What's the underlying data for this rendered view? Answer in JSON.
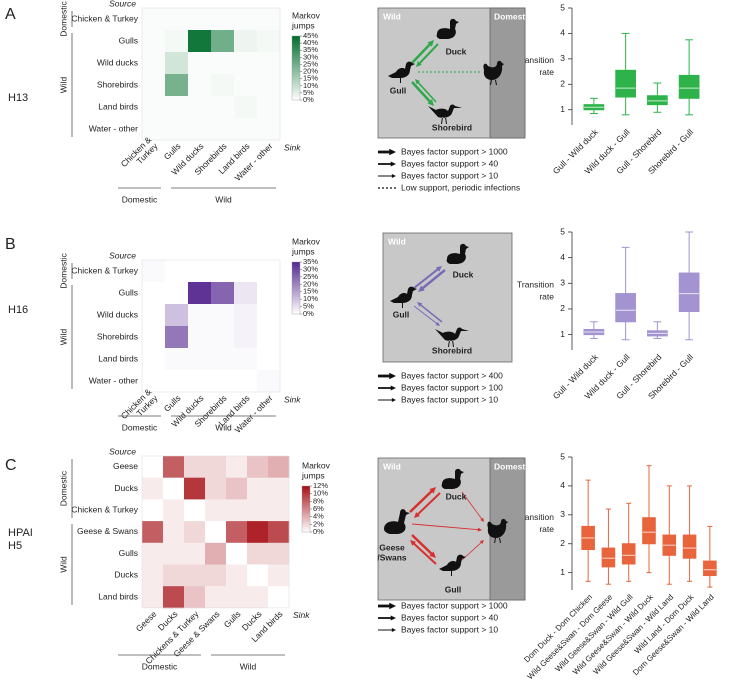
{
  "panels": [
    {
      "letter": "A",
      "name": [
        "H13"
      ]
    },
    {
      "letter": "B",
      "name": [
        "H16"
      ]
    },
    {
      "letter": "C",
      "name": [
        "HPAI",
        "H5"
      ]
    }
  ],
  "chart_data": [
    {
      "type": "heatmap",
      "source_label": "Source",
      "sink_label": "Sink",
      "rows": [
        "Chicken & Turkey",
        "Gulls",
        "Wild ducks",
        "Shorebirds",
        "Land birds",
        "Water - other"
      ],
      "columns": [
        [
          "Chicken &",
          "Turkey"
        ],
        [
          "Gulls"
        ],
        [
          "Wild ducks"
        ],
        [
          "Shorebirds"
        ],
        [
          "Land birds"
        ],
        [
          "Water - other"
        ]
      ],
      "row_groups": [
        {
          "name": "Domestic",
          "count": 1
        },
        {
          "name": "Wild",
          "count": 5
        }
      ],
      "column_groups": [
        {
          "name": "Domestic",
          "count": 1
        },
        {
          "name": "Wild",
          "count": 5
        }
      ],
      "values": [
        [
          1,
          1,
          1,
          1,
          1,
          1
        ],
        [
          1,
          2,
          42,
          25,
          3,
          2
        ],
        [
          1,
          8,
          1,
          1,
          1,
          1
        ],
        [
          1,
          24,
          1,
          2,
          1,
          1
        ],
        [
          1,
          1,
          1,
          1,
          2,
          1
        ],
        [
          1,
          1,
          1,
          1,
          1,
          1
        ]
      ],
      "colorbar_title": [
        "Markov",
        "jumps"
      ],
      "colorbar_lim": [
        0,
        45
      ],
      "colorbar_ticks": [
        {
          "value": 0,
          "label": "0%"
        },
        {
          "value": 5,
          "label": "5%"
        },
        {
          "value": 10,
          "label": "10%"
        },
        {
          "value": 15,
          "label": "15%"
        },
        {
          "value": 20,
          "label": "20%"
        },
        {
          "value": 25,
          "label": "25%"
        },
        {
          "value": 30,
          "label": "30%"
        },
        {
          "value": 35,
          "label": "35%"
        },
        {
          "value": 40,
          "label": "40%"
        },
        {
          "value": 45,
          "label": "45%"
        }
      ],
      "color": "#006d2c"
    },
    {
      "type": "box",
      "ylabel": [
        "Transition",
        "rate"
      ],
      "categories": [
        "Gull - Wild duck",
        "Wild duck - Gull",
        "Gull - Shorebird",
        "Shorebird - Gull"
      ],
      "values": [
        [
          0.85,
          1.0,
          1.1,
          1.2,
          1.45
        ],
        [
          0.8,
          1.5,
          1.85,
          2.55,
          4.0
        ],
        [
          0.9,
          1.2,
          1.35,
          1.55,
          2.05
        ],
        [
          0.8,
          1.45,
          1.85,
          2.35,
          3.75
        ]
      ],
      "color": "#2db34a",
      "ylim": [
        0.4,
        5
      ],
      "yticks": [
        1,
        2,
        3,
        4,
        5
      ]
    },
    {
      "type": "heatmap",
      "source_label": "Source",
      "sink_label": "Sink",
      "rows": [
        "Chicken & Turkey",
        "Gulls",
        "Wild ducks",
        "Shorebirds",
        "Land birds",
        "Water - other"
      ],
      "columns": [
        [
          "Chicken &",
          "Turkey"
        ],
        [
          "Gulls"
        ],
        [
          "Wild ducks"
        ],
        [
          "Shorebirds"
        ],
        [
          "Land birds"
        ],
        [
          "Water - other"
        ]
      ],
      "row_groups": [
        {
          "name": "Domestic",
          "count": 1
        },
        {
          "name": "Wild",
          "count": 5
        }
      ],
      "column_groups": [
        {
          "name": "Domestic",
          "count": 1
        },
        {
          "name": "Wild",
          "count": 5
        }
      ],
      "values": [
        [
          1,
          0,
          0,
          0,
          0,
          0
        ],
        [
          0,
          0,
          33,
          25,
          4,
          0
        ],
        [
          0,
          10,
          1,
          1,
          2,
          0
        ],
        [
          0,
          22,
          1,
          1,
          2,
          0
        ],
        [
          0,
          1,
          1,
          1,
          1,
          0
        ],
        [
          0,
          0,
          0,
          0,
          0,
          1
        ]
      ],
      "colorbar_title": [
        "Markov",
        "jumps"
      ],
      "colorbar_lim": [
        0,
        35
      ],
      "colorbar_ticks": [
        {
          "value": 0,
          "label": "0%"
        },
        {
          "value": 5,
          "label": "5%"
        },
        {
          "value": 10,
          "label": "10%"
        },
        {
          "value": 15,
          "label": "15%"
        },
        {
          "value": 20,
          "label": "20%"
        },
        {
          "value": 25,
          "label": "25%"
        },
        {
          "value": 30,
          "label": "30%"
        },
        {
          "value": 35,
          "label": "35%"
        }
      ],
      "color": "#54278f"
    },
    {
      "type": "box",
      "ylabel": [
        "Transition",
        "rate"
      ],
      "categories": [
        "Gull - Wild duck",
        "Wild duck - Gull",
        "Gull - Shorebird",
        "Shorebird - Gull"
      ],
      "values": [
        [
          0.85,
          1.0,
          1.1,
          1.2,
          1.5
        ],
        [
          0.8,
          1.5,
          1.95,
          2.6,
          4.4
        ],
        [
          0.85,
          0.95,
          1.05,
          1.15,
          1.5
        ],
        [
          0.8,
          1.9,
          2.6,
          3.4,
          5.0
        ]
      ],
      "color": "#a393d1",
      "ylim": [
        0.4,
        5
      ],
      "yticks": [
        1,
        2,
        3,
        4,
        5
      ]
    },
    {
      "type": "heatmap",
      "source_label": "Source",
      "sink_label": "Sink",
      "rows": [
        "Geese",
        "Ducks",
        "Chicken & Turkey",
        "Geese & Swans",
        "Gulls",
        "Ducks",
        "Land birds"
      ],
      "columns": [
        [
          "Geese"
        ],
        [
          "Ducks"
        ],
        [
          "Chickens & Turkey"
        ],
        [
          "Geese & Swans"
        ],
        [
          "Gulls"
        ],
        [
          "Ducks"
        ],
        [
          "Land birds"
        ]
      ],
      "row_groups": [
        {
          "name": "Domestic",
          "count": 3
        },
        {
          "name": "Wild",
          "count": 4
        }
      ],
      "column_groups": [
        {
          "name": "Domestic",
          "count": 3
        },
        {
          "name": "Wild",
          "count": 4
        }
      ],
      "values": [
        [
          0,
          8,
          2,
          2,
          1,
          3,
          4
        ],
        [
          1,
          0,
          10,
          2,
          3,
          1,
          1
        ],
        [
          0,
          1,
          0,
          1,
          1,
          1,
          1
        ],
        [
          8,
          1,
          2,
          0,
          8,
          11,
          9
        ],
        [
          1,
          1,
          1,
          4,
          0,
          2,
          2
        ],
        [
          1,
          2,
          2,
          2,
          1,
          0,
          1
        ],
        [
          1,
          9,
          3,
          1,
          1,
          1,
          0
        ]
      ],
      "colorbar_title": [
        "Markov",
        "jumps"
      ],
      "colorbar_lim": [
        0,
        12
      ],
      "colorbar_ticks": [
        {
          "value": 0,
          "label": "0%"
        },
        {
          "value": 2,
          "label": "2%"
        },
        {
          "value": 4,
          "label": "4%"
        },
        {
          "value": 6,
          "label": "6%"
        },
        {
          "value": 8,
          "label": "8%"
        },
        {
          "value": 10,
          "label": "10%"
        },
        {
          "value": 12,
          "label": "12%"
        }
      ],
      "color": "#a50f15"
    },
    {
      "type": "box",
      "ylabel": [
        "Transition",
        "rate"
      ],
      "categories": [
        "Dom Duck - Dom Chicken",
        "Wild Geese&Swan - Dom Geese",
        "Wild Geese&Swan - Wild Gull",
        "Wild Geese&Swan - Wild Duck",
        "Wild Geese&Swan - Wild Land",
        "Wild Land - Dom Duck",
        "Dom Geese&Swan - Wild Land"
      ],
      "values": [
        [
          0.7,
          1.8,
          2.2,
          2.6,
          4.2
        ],
        [
          0.6,
          1.2,
          1.5,
          1.85,
          3.2
        ],
        [
          0.7,
          1.3,
          1.6,
          2.0,
          3.4
        ],
        [
          1.0,
          2.0,
          2.4,
          2.9,
          4.7
        ],
        [
          0.6,
          1.6,
          1.95,
          2.3,
          4.0
        ],
        [
          0.7,
          1.5,
          1.85,
          2.3,
          4.0
        ],
        [
          0.5,
          0.9,
          1.1,
          1.4,
          2.6
        ]
      ],
      "color": "#e8643c",
      "ylim": [
        0.4,
        5
      ],
      "yticks": [
        1,
        2,
        3,
        4,
        5
      ]
    }
  ],
  "diagrams": [
    {
      "regions": [
        "Wild",
        "Domestic"
      ],
      "nodes": [
        [
          "Duck"
        ],
        [
          "Gull"
        ],
        [
          "Shorebird"
        ]
      ],
      "legend": [
        "Bayes factor support > 1000",
        "Bayes factor support > 40",
        "Bayes factor support > 10",
        "Low support, periodic infections"
      ]
    },
    {
      "regions": [
        "Wild"
      ],
      "nodes": [
        [
          "Duck"
        ],
        [
          "Gull"
        ],
        [
          "Shorebird"
        ]
      ],
      "legend": [
        "Bayes factor support > 400",
        "Bayes factor support > 100",
        "Bayes factor support > 10"
      ]
    },
    {
      "regions": [
        "Wild",
        "Domestic"
      ],
      "nodes": [
        [
          "Duck"
        ],
        [
          "Geese",
          "/Swans"
        ],
        [
          "Gull"
        ]
      ],
      "legend": [
        "Bayes factor support > 1000",
        "Bayes factor support > 40",
        "Bayes factor support > 10"
      ]
    }
  ]
}
